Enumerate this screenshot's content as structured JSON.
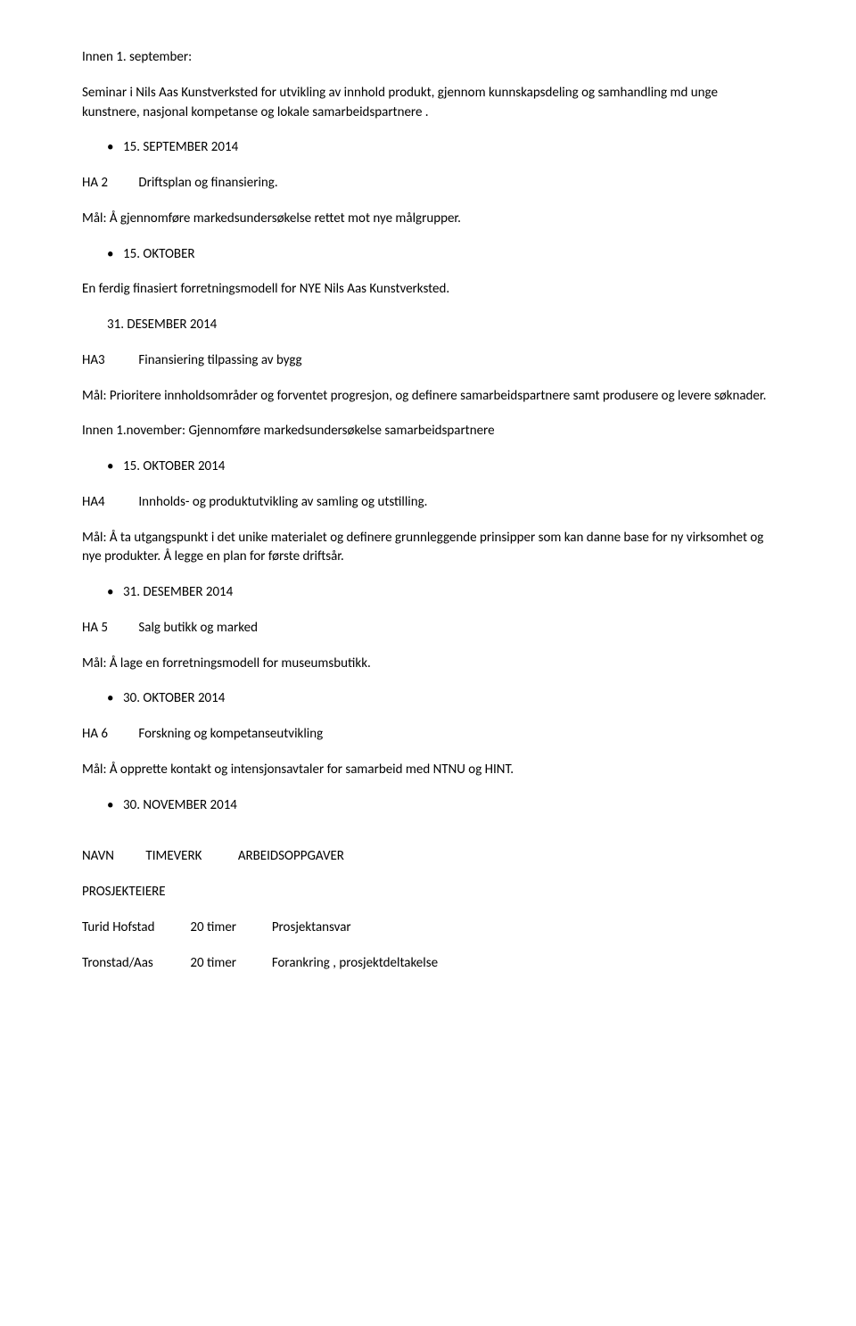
{
  "doc": {
    "font_family": "Calibri",
    "body_fontsize_pt": 11,
    "text_color": "#000000",
    "background_color": "#ffffff",
    "bullet_glyph": "•"
  },
  "p1": "Innen 1. september:",
  "p2": "Seminar i Nils Aas Kunstverksted for utvikling av innhold produkt, gjennom kunnskapsdeling og samhandling md unge kunstnere, nasjonal kompetanse og lokale samarbeidspartnere .",
  "b1": "15. SEPTEMBER 2014",
  "ha2_tag": "HA 2",
  "ha2_title": "Driftsplan og finansiering.",
  "p3": "Mål:  Å gjennomføre markedsundersøkelse rettet mot nye målgrupper.",
  "b2": "15. OKTOBER",
  "p4": "En ferdig finasiert forretningsmodell for NYE Nils Aas Kunstverksted.",
  "p5": "31. DESEMBER 2014",
  "ha3_tag": "HA3",
  "ha3_title": "Finansiering tilpassing av bygg",
  "p6": "Mål: Prioritere innholdsområder og forventet progresjon, og definere samarbeidspartnere  samt produsere og levere søknader.",
  "p7": "Innen 1.november: Gjennomføre markedsundersøkelse samarbeidspartnere",
  "b3": "15. OKTOBER 2014",
  "ha4_tag": "HA4",
  "ha4_title": "Innholds- og produktutvikling av samling og utstilling.",
  "p8": "Mål: Å ta utgangspunkt i det unike materialet og definere grunnleggende prinsipper som kan danne base for ny virksomhet og nye produkter. Å legge en plan for første driftsår.",
  "b4": "31. DESEMBER 2014",
  "ha5_tag": "HA 5",
  "ha5_title": "Salg butikk og marked",
  "p9": "Mål: Å lage en forretningsmodell for museumsbutikk.",
  "b5": "30. OKTOBER 2014",
  "ha6_tag": "HA 6",
  "ha6_title": "Forskning og kompetanseutvikling",
  "p10": "Mål: Å opprette kontakt og intensjonsavtaler for samarbeid med NTNU og HINT.",
  "b6": "30. NOVEMBER 2014",
  "th1": "NAVN",
  "th2": "TIMEVERK",
  "th3": "ARBEIDSOPPGAVER",
  "sect": "PROSJEKTEIERE",
  "r1c1": "Turid Hofstad",
  "r1c2": "20 timer",
  "r1c3": "Prosjektansvar",
  "r2c1": "Tronstad/Aas",
  "r2c2": "20 timer",
  "r2c3": "Forankring , prosjektdeltakelse"
}
